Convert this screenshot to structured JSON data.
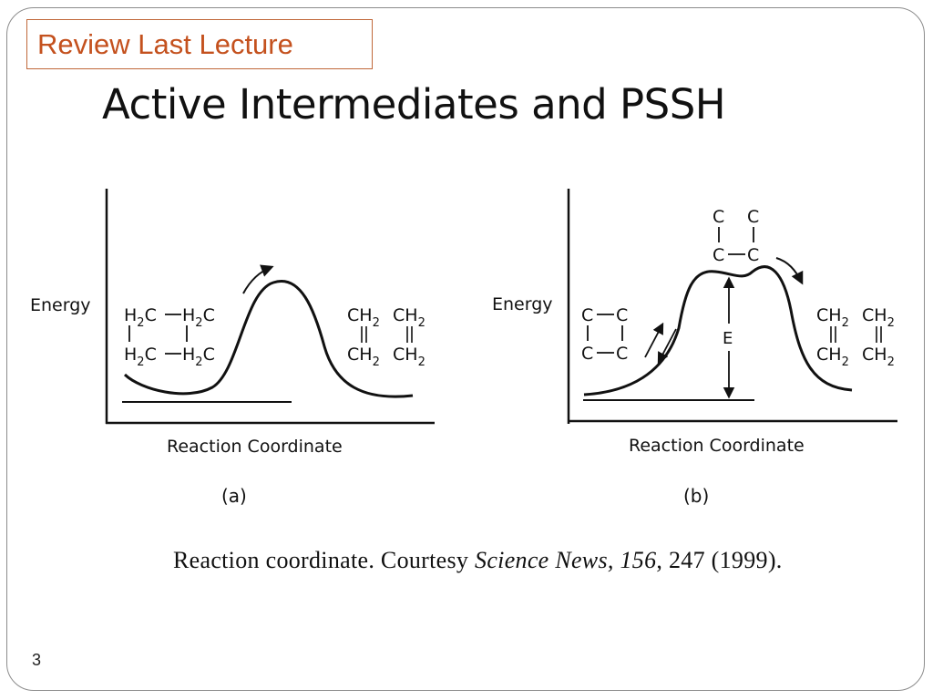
{
  "slide": {
    "tag": "Review Last Lecture",
    "title": "Active Intermediates and PSSH",
    "number": "3"
  },
  "figure": {
    "panel_a": {
      "y_axis_label": "Energy",
      "x_axis_label": "Reaction Coordinate",
      "panel_label": "(a)",
      "reactant": {
        "top_left": "H",
        "top_left_sub": "2",
        "top_left_tail": "C",
        "top_right": "H",
        "top_right_sub": "2",
        "top_right_tail": "C",
        "bottom_left": "H",
        "bottom_left_sub": "2",
        "bottom_left_tail": "C",
        "bottom_right": "H",
        "bottom_right_sub": "2",
        "bottom_right_tail": "C"
      },
      "product": {
        "top_left": "CH",
        "top_left_sub": "2",
        "top_right": "CH",
        "top_right_sub": "2",
        "bottom_left": "CH",
        "bottom_left_sub": "2",
        "bottom_right": "CH",
        "bottom_right_sub": "2"
      }
    },
    "panel_b": {
      "y_axis_label": "Energy",
      "x_axis_label": "Reaction Coordinate",
      "panel_label": "(b)",
      "energy_label": "E",
      "reactant": {
        "c1": "C",
        "c2": "C",
        "c3": "C",
        "c4": "C"
      },
      "intermediate": {
        "c1": "C",
        "c2": "C",
        "c3": "C",
        "c4": "C"
      },
      "product": {
        "top_left": "CH",
        "top_left_sub": "2",
        "top_right": "CH",
        "top_right_sub": "2",
        "bottom_left": "CH",
        "bottom_left_sub": "2",
        "bottom_right": "CH",
        "bottom_right_sub": "2"
      }
    },
    "caption": {
      "text": "Reaction coordinate. Courtesy ",
      "journal": "Science News,",
      "volume": " 156",
      "rest": ", 247 (1999)."
    }
  }
}
